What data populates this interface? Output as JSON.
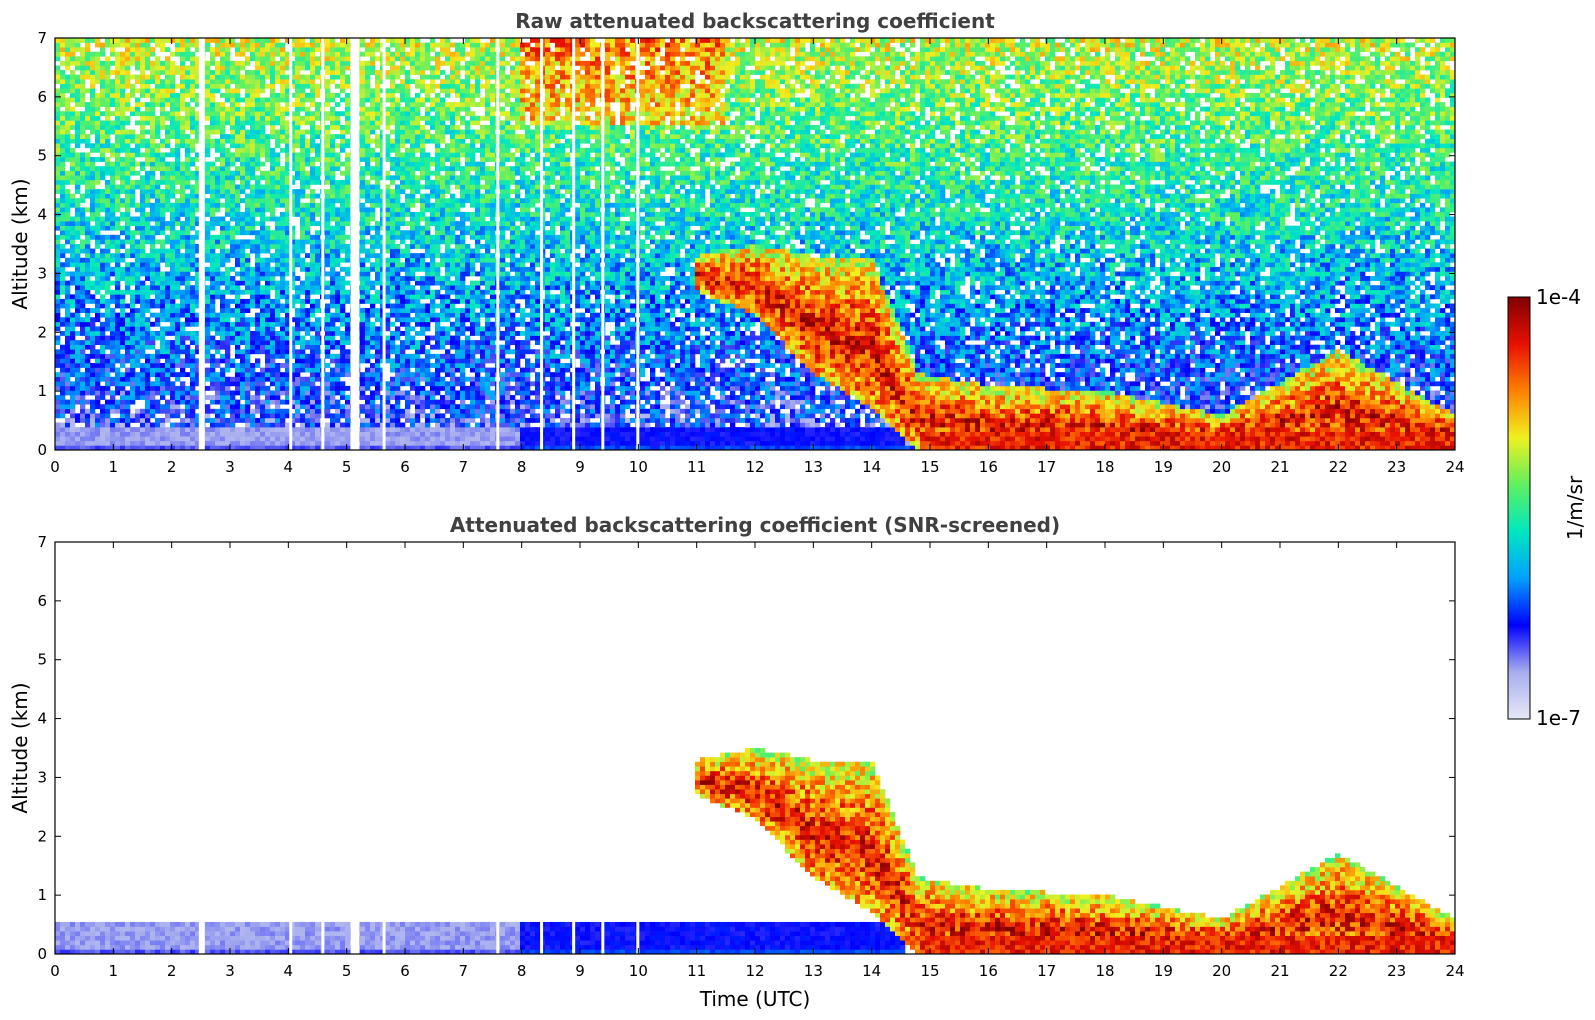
{
  "chart_data": [
    {
      "type": "heatmap",
      "title": "Raw attenuated backscattering coefficient",
      "xlabel": "",
      "ylabel": "Altitude (km)",
      "xlim": [
        0,
        24
      ],
      "ylim": [
        0,
        7
      ],
      "xticks": [
        "0",
        "1",
        "2",
        "3",
        "4",
        "5",
        "6",
        "7",
        "8",
        "9",
        "10",
        "11",
        "12",
        "13",
        "14",
        "15",
        "16",
        "17",
        "18",
        "19",
        "20",
        "21",
        "22",
        "23",
        "24"
      ],
      "yticks": [
        "0",
        "1",
        "2",
        "3",
        "4",
        "5",
        "6",
        "7"
      ],
      "gaps_hours": [
        2.5,
        4.05,
        4.6,
        5.1,
        5.15,
        5.65,
        7.6,
        8.35,
        8.9,
        9.4,
        10.0
      ],
      "features": {
        "cloud_layer_tops_km": [
          {
            "t": 11.0,
            "top": 3.3,
            "base": 2.7
          },
          {
            "t": 12.0,
            "top": 3.5,
            "base": 2.3
          },
          {
            "t": 13.0,
            "top": 3.3,
            "base": 1.3
          },
          {
            "t": 14.0,
            "top": 3.3,
            "base": 0.7
          },
          {
            "t": 14.8,
            "top": 1.3,
            "base": 0.0
          },
          {
            "t": 16.0,
            "top": 1.1,
            "base": 0.0
          },
          {
            "t": 18.0,
            "top": 1.0,
            "base": 0.0
          },
          {
            "t": 20.0,
            "top": 0.6,
            "base": 0.0
          },
          {
            "t": 22.0,
            "top": 1.7,
            "base": 0.0
          },
          {
            "t": 24.0,
            "top": 0.6,
            "base": 0.0
          }
        ],
        "boundary_layer_top_km": 0.4
      }
    },
    {
      "type": "heatmap",
      "title": "Attenuated backscattering coefficient (SNR-screened)",
      "xlabel": "Time (UTC)",
      "ylabel": "Altitude (km)",
      "xlim": [
        0,
        24
      ],
      "ylim": [
        0,
        7
      ],
      "xticks": [
        "0",
        "1",
        "2",
        "3",
        "4",
        "5",
        "6",
        "7",
        "8",
        "9",
        "10",
        "11",
        "12",
        "13",
        "14",
        "15",
        "16",
        "17",
        "18",
        "19",
        "20",
        "21",
        "22",
        "23",
        "24"
      ],
      "yticks": [
        "0",
        "1",
        "2",
        "3",
        "4",
        "5",
        "6",
        "7"
      ],
      "gaps_hours": [
        2.5,
        4.05,
        4.6,
        5.1,
        5.15,
        5.65,
        7.6,
        8.35,
        8.9,
        9.4,
        10.0
      ],
      "features": {
        "cloud_layer_tops_km": [
          {
            "t": 11.0,
            "top": 3.3,
            "base": 2.7
          },
          {
            "t": 12.0,
            "top": 3.5,
            "base": 2.3
          },
          {
            "t": 13.0,
            "top": 3.3,
            "base": 1.3
          },
          {
            "t": 14.0,
            "top": 3.3,
            "base": 0.7
          },
          {
            "t": 14.8,
            "top": 1.3,
            "base": 0.0
          },
          {
            "t": 16.0,
            "top": 1.1,
            "base": 0.0
          },
          {
            "t": 18.0,
            "top": 1.0,
            "base": 0.0
          },
          {
            "t": 20.0,
            "top": 0.6,
            "base": 0.0
          },
          {
            "t": 22.0,
            "top": 1.7,
            "base": 0.0
          },
          {
            "t": 24.0,
            "top": 0.6,
            "base": 0.0
          }
        ],
        "boundary_layer_top_km": 0.55
      }
    }
  ],
  "colorbar": {
    "label": "1/m/sr",
    "min_label": "1e-7",
    "max_label": "1e-4",
    "colormap_stops": [
      "#e6e8f8",
      "#a8aeee",
      "#0000ff",
      "#00a0ff",
      "#00e8c0",
      "#60f060",
      "#f0f020",
      "#ff8000",
      "#e81000",
      "#800000"
    ]
  }
}
